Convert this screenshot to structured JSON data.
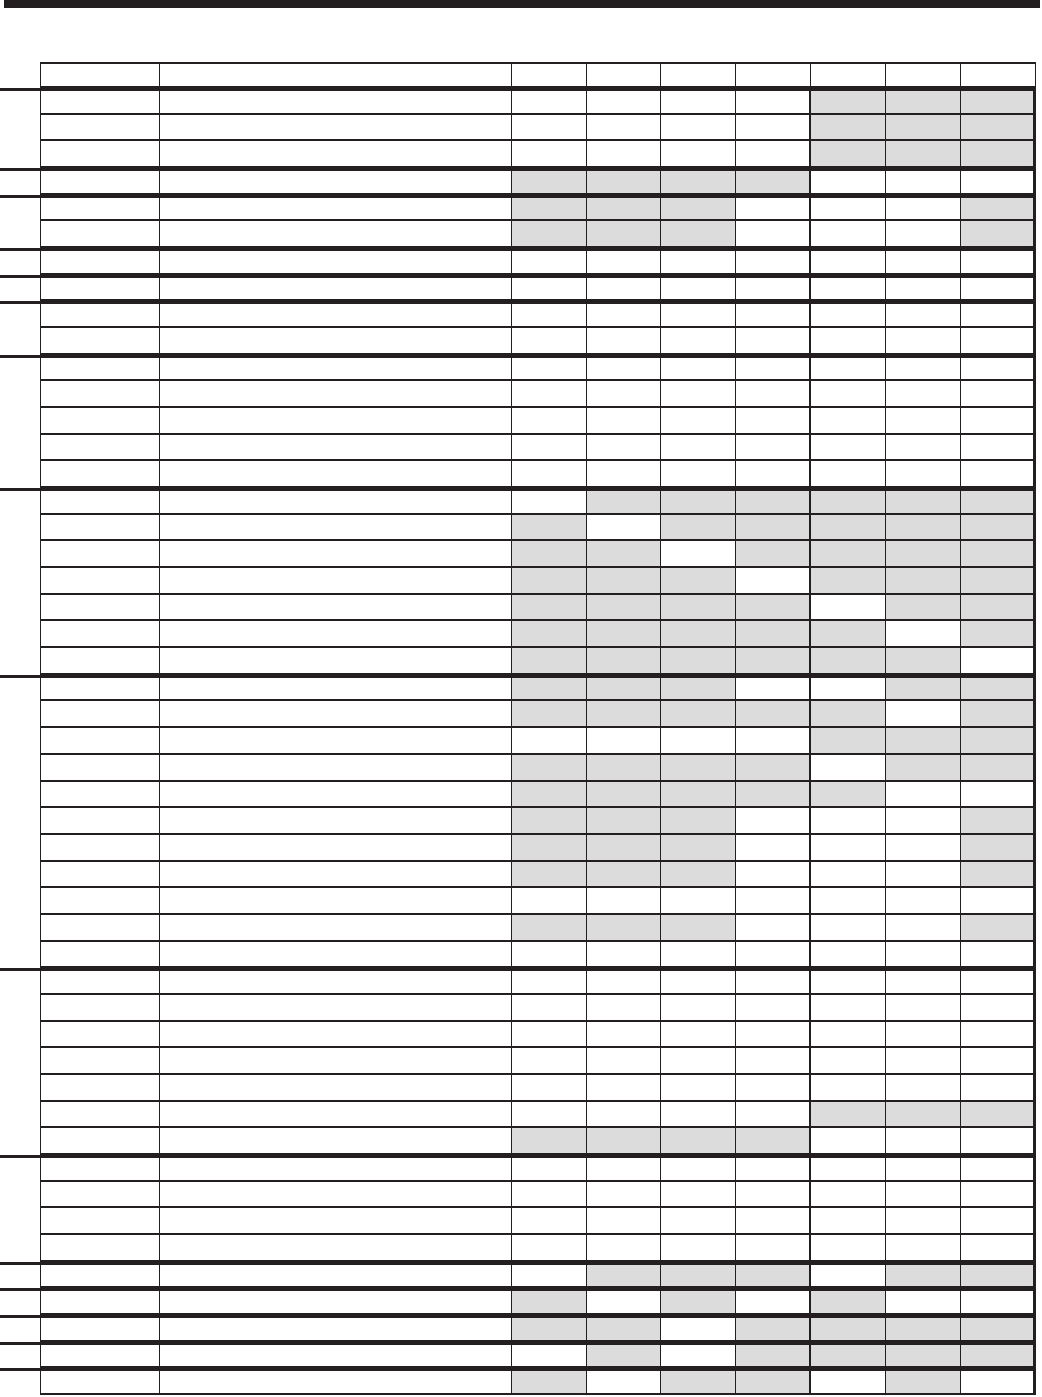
{
  "table": {
    "shade_color": "#dcdcdc",
    "line_color": "#231f20",
    "column_count": 10,
    "groups": [
      [
        "0000111",
        "0000111",
        "0000111"
      ],
      [
        "1111000"
      ],
      [
        "1110001",
        "1110001"
      ],
      [
        "0000000"
      ],
      [
        "0000000"
      ],
      [
        "0000000",
        "0000000"
      ],
      [
        "0000000",
        "0000000",
        "0000000",
        "0000000",
        "0000000"
      ],
      [
        "0111111",
        "1011111",
        "1101111",
        "1110111",
        "1111011",
        "1111101",
        "1111110"
      ],
      [
        "1110011",
        "1111101",
        "0000111",
        "1111011",
        "1111100",
        "1110001",
        "1110001",
        "1110001",
        "0000000",
        "1110001",
        "0000000"
      ],
      [
        "0000000",
        "0000000",
        "0000000",
        "0000000",
        "0000000",
        "0000111",
        "1111000"
      ],
      [
        "0000000",
        "0000000",
        "0000000",
        "0000000"
      ],
      [
        "0111011"
      ],
      [
        "1010100"
      ],
      [
        "1101111"
      ],
      [
        "0101111"
      ],
      [
        "1011010"
      ]
    ]
  }
}
